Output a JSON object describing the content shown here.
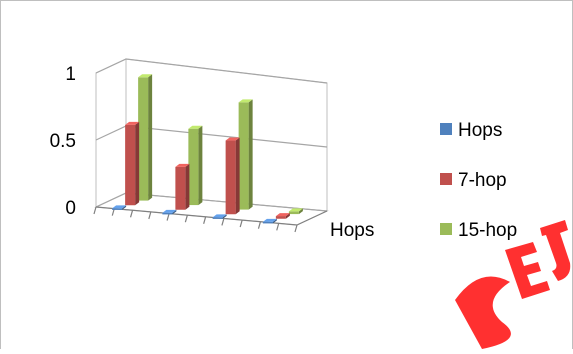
{
  "chart_data": {
    "type": "bar",
    "three_d": true,
    "categories": [
      "",
      "",
      "",
      ""
    ],
    "xlabel": "Hops",
    "ylabel": "",
    "ylim": [
      0,
      1
    ],
    "yticks": [
      {
        "value": 0,
        "label": "0"
      },
      {
        "value": 0.5,
        "label": "0.5"
      },
      {
        "value": 1,
        "label": "1"
      }
    ],
    "grid": true,
    "legend_position": "right",
    "series": [
      {
        "name": "Hops",
        "color": "#4f81bd",
        "values": [
          0.01,
          0.01,
          0.01,
          0.01
        ]
      },
      {
        "name": "7-hop",
        "color": "#c0504d",
        "values": [
          0.6,
          0.32,
          0.55,
          0.02
        ]
      },
      {
        "name": "15-hop",
        "color": "#9bbb59",
        "values": [
          0.92,
          0.57,
          0.8,
          0.02
        ]
      }
    ]
  }
}
